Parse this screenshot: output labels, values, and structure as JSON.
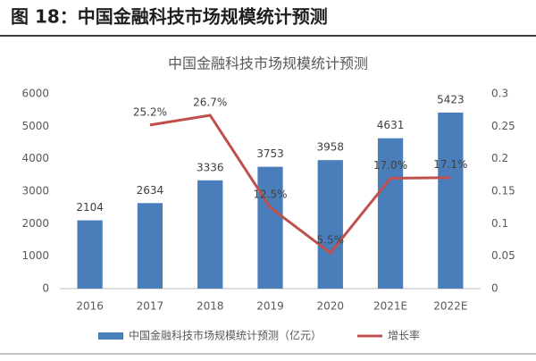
{
  "header": {
    "title": "图 18：中国金融科技市场规模统计预测"
  },
  "chart_data": {
    "type": "bar",
    "title": "中国金融科技市场规模统计预测",
    "categories": [
      "2016",
      "2017",
      "2018",
      "2019",
      "2020",
      "2021E",
      "2022E"
    ],
    "series": [
      {
        "name": "中国金融科技市场规模统计预测（亿元）",
        "type": "bar",
        "color": "#4a7ebb",
        "values": [
          2104,
          2634,
          3336,
          3753,
          3958,
          4631,
          5423
        ]
      },
      {
        "name": "增长率",
        "type": "line",
        "axis": "y2",
        "color": "#c0504d",
        "values": [
          null,
          0.252,
          0.267,
          0.125,
          0.055,
          0.17,
          0.171
        ],
        "value_labels": [
          null,
          "25.2%",
          "26.7%",
          "12.5%",
          "5.5%",
          "17.0%",
          "17.1%"
        ]
      }
    ],
    "ylim": [
      0,
      6000
    ],
    "yticks": [
      0,
      1000,
      2000,
      3000,
      4000,
      5000,
      6000
    ],
    "y2lim": [
      0,
      0.3
    ],
    "y2ticks": [
      0,
      0.05,
      0.1,
      0.15,
      0.2,
      0.25,
      0.3
    ],
    "grid": false,
    "legend": "bottom"
  }
}
